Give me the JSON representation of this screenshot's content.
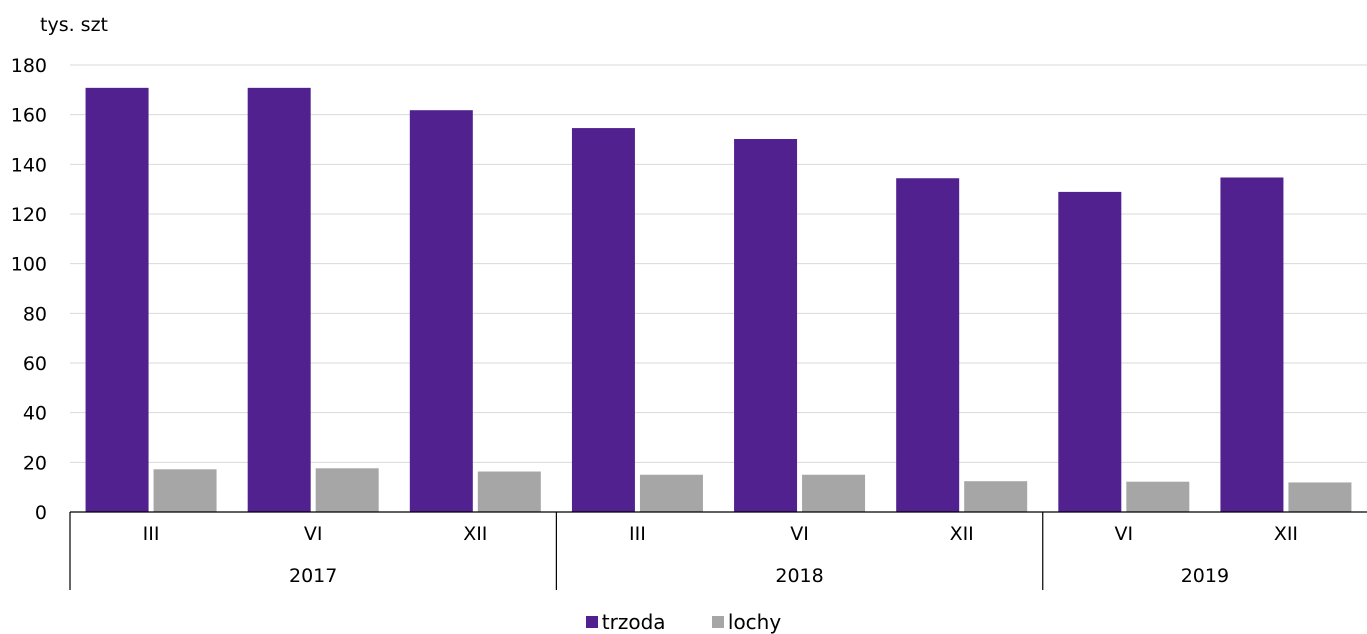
{
  "chart_data": {
    "type": "bar",
    "ylabel": "tys. szt",
    "ylim": [
      0,
      180
    ],
    "yticks": [
      0,
      20,
      40,
      60,
      80,
      100,
      120,
      140,
      160,
      180
    ],
    "grid": true,
    "legend_position": "bottom",
    "categories": [
      "III",
      "VI",
      "XII",
      "III",
      "VI",
      "XII",
      "VI",
      "XII"
    ],
    "groups": [
      {
        "label": "2017",
        "count": 3
      },
      {
        "label": "2018",
        "count": 3
      },
      {
        "label": "2019",
        "count": 2
      }
    ],
    "series": [
      {
        "name": "trzoda",
        "color": "#51218f",
        "values": [
          170.8,
          170.8,
          161.8,
          154.6,
          150.2,
          134.4,
          128.9,
          134.7
        ]
      },
      {
        "name": "lochy",
        "color": "#a6a6a6",
        "values": [
          17.2,
          17.6,
          16.3,
          15.0,
          15.0,
          12.4,
          12.2,
          11.9
        ]
      }
    ]
  }
}
